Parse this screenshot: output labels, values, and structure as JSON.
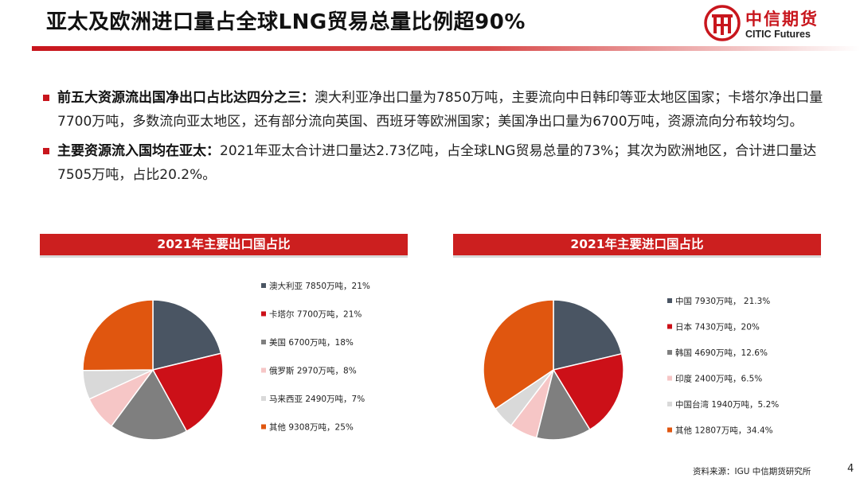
{
  "header": {
    "title": "亚太及欧洲进口量占全球LNG贸易总量比例超90%",
    "logo_cn": "中信期货",
    "logo_en": "CITIC Futures"
  },
  "bullets": [
    {
      "bold": "前五大资源流出国净出口占比达四分之三：",
      "text": "澳大利亚净出口量为7850万吨，主要流向中日韩印等亚太地区国家；卡塔尔净出口量7700万吨，多数流向亚太地区，还有部分流向英国、西班牙等欧洲国家；美国净出口量为6700万吨，资源流向分布较均匀。"
    },
    {
      "bold": "主要资源流入国均在亚太：",
      "text": "2021年亚太合计进口量达2.73亿吨，占全球LNG贸易总量的73%；其次为欧洲地区，合计进口量达7505万吨，占比20.2%。"
    }
  ],
  "colors": {
    "accent": "#cc1f1f",
    "slice_colors": [
      "#4a5563",
      "#cc1018",
      "#7f7f7f",
      "#f6c6c6",
      "#d9d9d9",
      "#e0560f"
    ]
  },
  "chart_data": [
    {
      "type": "pie",
      "title": "2021年主要出口国占比",
      "labels": [
        "澳大利亚",
        "卡塔尔",
        "美国",
        "俄罗斯",
        "马来西亚",
        "其他"
      ],
      "values": [
        7850,
        7700,
        6700,
        2970,
        2490,
        9308
      ],
      "unit": "万吨",
      "legend": [
        "澳大利亚 7850万吨，21%",
        "卡塔尔 7700万吨，21%",
        "美国 6700万吨，18%",
        "俄罗斯 2970万吨，8%",
        "马来西亚 2490万吨，7%",
        "其他 9308万吨，25%"
      ],
      "legend_position": "right"
    },
    {
      "type": "pie",
      "title": "2021年主要进口国占比",
      "labels": [
        "中国",
        "日本",
        "韩国",
        "印度",
        "中国台湾",
        "其他"
      ],
      "values": [
        7930,
        7430,
        4690,
        2400,
        1940,
        12807
      ],
      "unit": "万吨",
      "legend": [
        "中国 7930万吨， 21.3%",
        "日本 7430万吨，20%",
        "韩国 4690万吨，12.6%",
        "印度 2400万吨，6.5%",
        "中国台湾 1940万吨，5.2%",
        "其他 12807万吨，34.4%"
      ],
      "legend_position": "right"
    }
  ],
  "footer": {
    "source": "资料来源：IGU 中信期货研究所",
    "page": "4"
  }
}
